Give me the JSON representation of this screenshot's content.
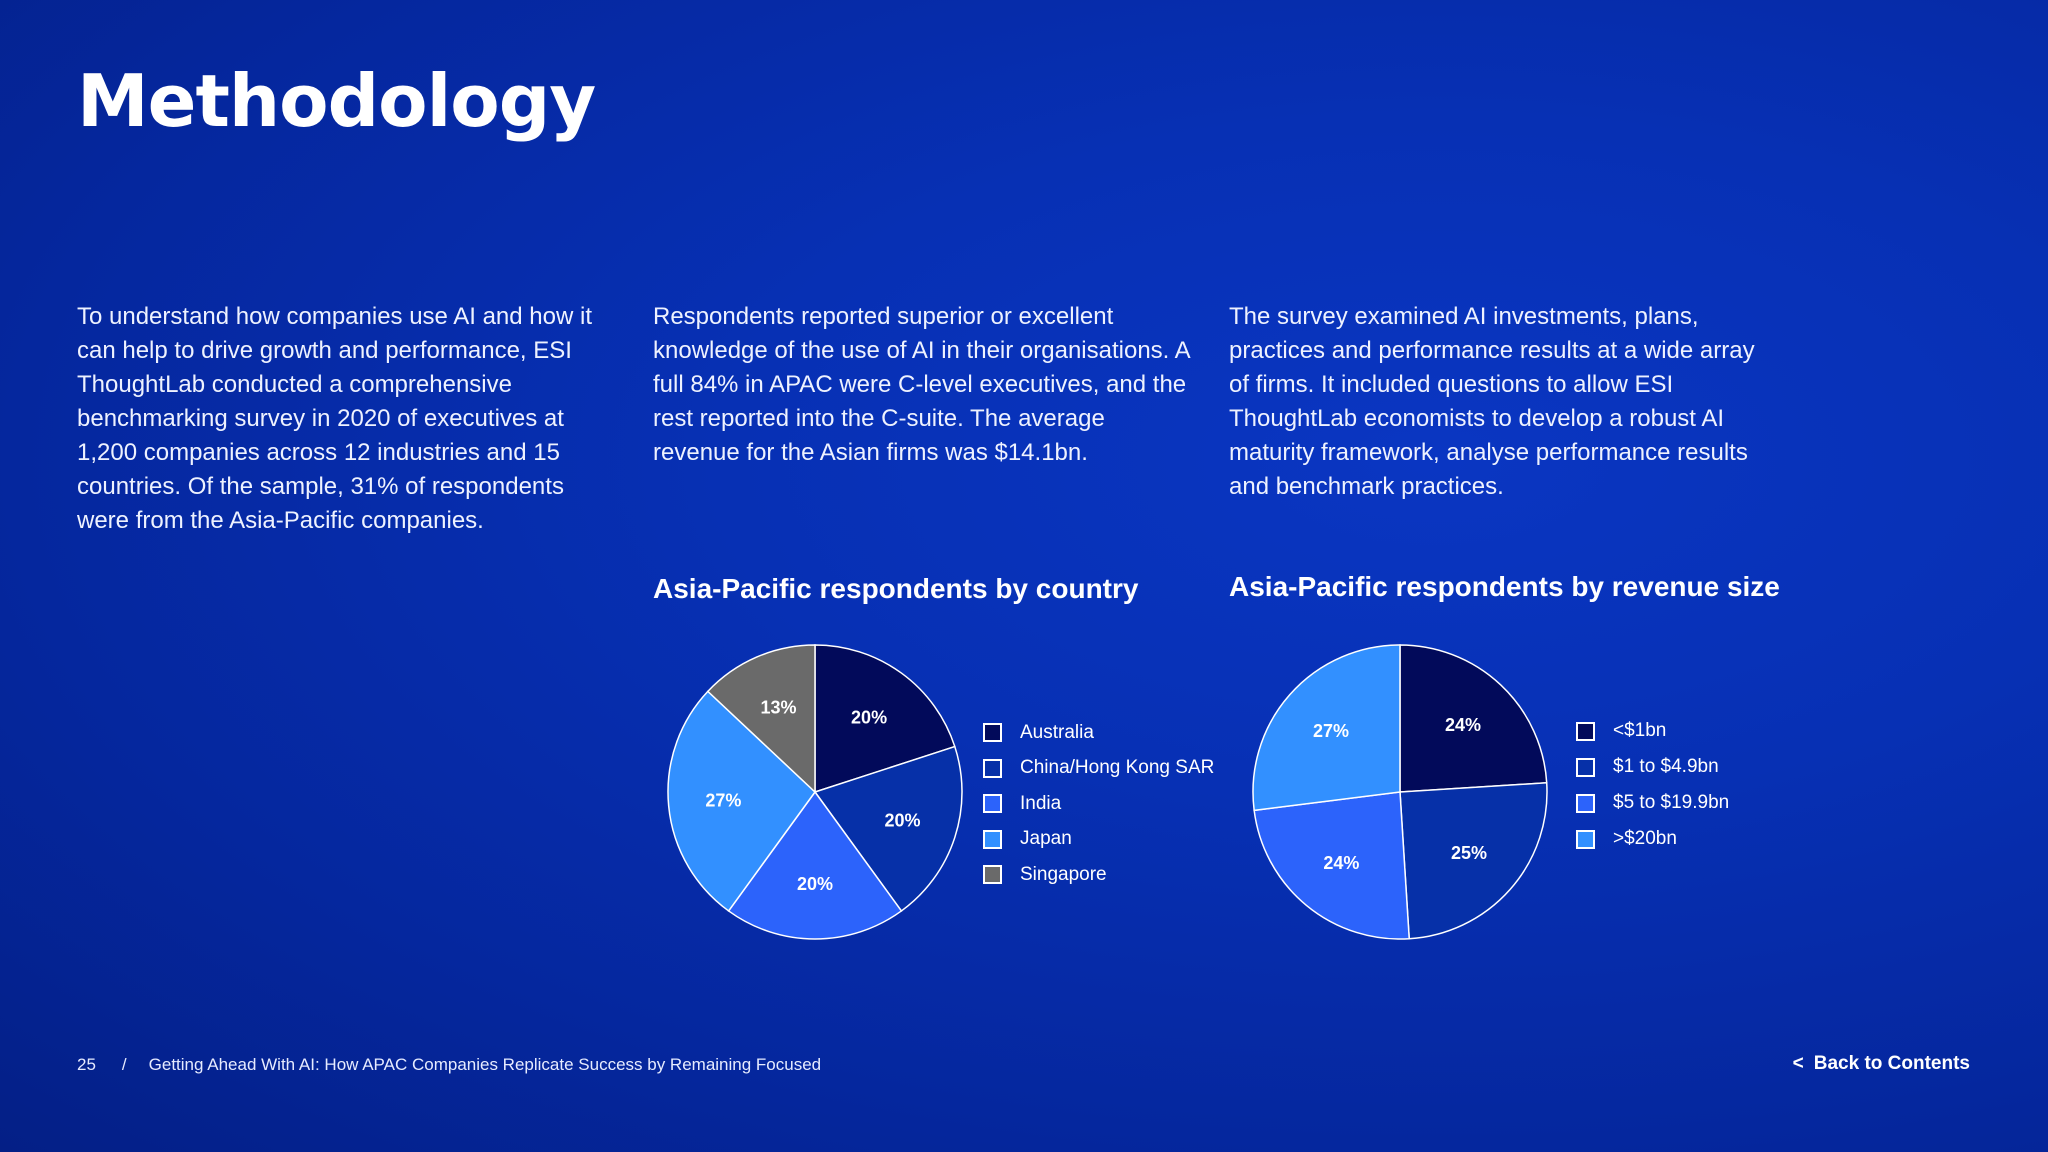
{
  "page": {
    "title": "Methodology",
    "columns": [
      "To understand how companies use AI and how it can help to drive growth and performance, ESI ThoughtLab conducted a comprehensive benchmarking survey in 2020 of executives at 1,200 companies across 12 industries and 15 countries. Of the sample, 31% of respondents were from the Asia-Pacific companies.",
      "Respondents reported superior or excellent knowledge of the use of AI in their organisations. A full 84% in APAC were C-level executives, and the rest reported into the C-suite. The average revenue for the Asian firms was $14.1bn.",
      "The survey examined AI investments, plans, practices and performance results at a wide array of firms. It included questions to allow ESI ThoughtLab economists to develop a robust AI maturity framework, analyse performance results and benchmark practices."
    ]
  },
  "chart_data": [
    {
      "type": "pie",
      "title": "Asia-Pacific respondents by country",
      "categories": [
        "Australia",
        "China/Hong Kong SAR",
        "India",
        "Japan",
        "Singapore"
      ],
      "values": [
        20,
        20,
        20,
        27,
        13
      ],
      "labels": [
        "20%",
        "20%",
        "20%",
        "27%",
        "13%"
      ],
      "colors": [
        "#020a5a",
        "#0630a8",
        "#2c63fb",
        "#3290ff",
        "#6a6a6a"
      ],
      "legend": "right"
    },
    {
      "type": "pie",
      "title": "Asia-Pacific respondents by revenue size",
      "categories": [
        "<$1bn",
        "$1 to $4.9bn",
        "$5 to $19.9bn",
        ">$20bn"
      ],
      "values": [
        24,
        25,
        24,
        27
      ],
      "labels": [
        "24%",
        "25%",
        "24%",
        "27%"
      ],
      "colors": [
        "#020a5a",
        "#0630a8",
        "#2c63fb",
        "#3290ff"
      ],
      "legend": "right"
    }
  ],
  "footer": {
    "page_number": "25",
    "separator": "/",
    "doc_title": "Getting Ahead With AI: How APAC Companies Replicate Success by Remaining Focused",
    "back_chevron": "<",
    "back_label": "Back to Contents"
  }
}
